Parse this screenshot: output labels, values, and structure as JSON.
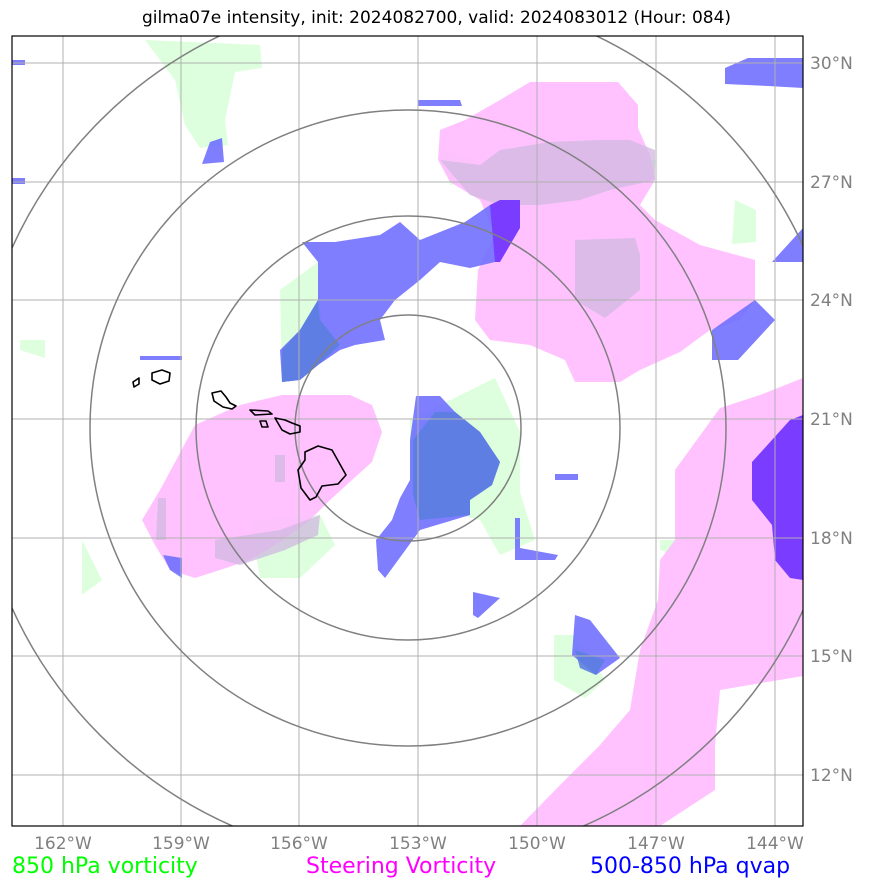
{
  "title": "gilma07e intensity, init: 2024082700, valid: 2024083012 (Hour: 084)",
  "lat_labels": [
    "30°N",
    "27°N",
    "24°N",
    "21°N",
    "18°N",
    "15°N",
    "12°N"
  ],
  "lon_labels": [
    "162°W",
    "159°W",
    "156°W",
    "153°W",
    "150°W",
    "147°W",
    "144°W"
  ],
  "legend": {
    "vort850": {
      "label": "850 hPa vorticity",
      "color": "#00ff00"
    },
    "steering": {
      "label": "Steering Vorticity",
      "color": "#ff00ff"
    },
    "qvap": {
      "label": "500-850 hPa qvap",
      "color": "#0000ff"
    }
  },
  "colors": {
    "vort850_fill": "#ddffdd",
    "steering_fill": "#ffbbff",
    "qvap_fill": "#7070ff",
    "qvap_strong_fill": "#7a3dff",
    "range_rings": "#808080",
    "gridlines": "#b0b0b0",
    "coastline": "#000000"
  }
}
